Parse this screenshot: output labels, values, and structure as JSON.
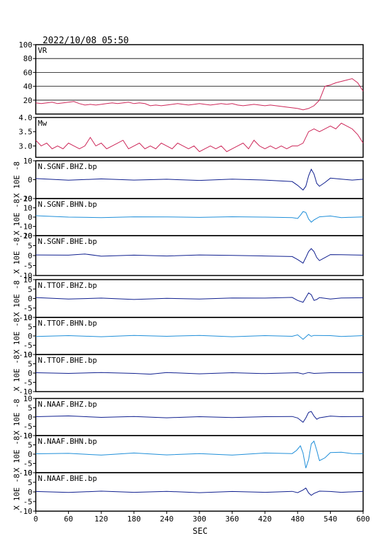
{
  "header": {
    "title": "2022/10/08 05:50"
  },
  "x_axis": {
    "label": "SEC",
    "ticks": [
      "0",
      "60",
      "120",
      "180",
      "240",
      "300",
      "360",
      "420",
      "480",
      "540",
      "600"
    ]
  },
  "colors": {
    "vr_mw": "#cc2255",
    "dark_trace": "#0a1a8c",
    "light_trace": "#1a8cd8",
    "frame": "#000000"
  },
  "chart_data": [
    {
      "type": "line",
      "label": "VR",
      "yticks": [
        "100",
        "80",
        "60",
        "40",
        "20"
      ],
      "ylim": [
        0,
        100
      ],
      "grid": true,
      "series": [
        {
          "name": "VR",
          "x": [
            0,
            10,
            20,
            30,
            40,
            50,
            60,
            70,
            80,
            90,
            100,
            110,
            120,
            130,
            140,
            150,
            160,
            170,
            180,
            190,
            200,
            210,
            220,
            230,
            240,
            250,
            260,
            270,
            280,
            290,
            300,
            310,
            320,
            330,
            340,
            350,
            360,
            370,
            380,
            390,
            400,
            410,
            420,
            430,
            440,
            450,
            460,
            470,
            480,
            490,
            500,
            510,
            520,
            530,
            540,
            550,
            560,
            570,
            580,
            590,
            600
          ],
          "values": [
            16,
            15,
            16,
            17,
            15,
            16,
            17,
            18,
            15,
            13,
            14,
            13,
            14,
            15,
            16,
            15,
            16,
            17,
            15,
            16,
            15,
            12,
            13,
            12,
            13,
            14,
            15,
            14,
            13,
            14,
            15,
            14,
            13,
            14,
            15,
            14,
            15,
            13,
            12,
            13,
            14,
            13,
            12,
            13,
            12,
            11,
            10,
            9,
            8,
            6,
            8,
            12,
            20,
            40,
            42,
            45,
            47,
            49,
            51,
            45,
            33
          ]
        }
      ]
    },
    {
      "type": "line",
      "label": "Mw",
      "yticks": [
        "4.0",
        "3.5",
        "3.0"
      ],
      "ylim": [
        2.6,
        4.0
      ],
      "grid": false,
      "series": [
        {
          "name": "Mw",
          "x": [
            0,
            10,
            20,
            30,
            40,
            50,
            60,
            70,
            80,
            90,
            100,
            110,
            120,
            130,
            140,
            150,
            160,
            170,
            180,
            190,
            200,
            210,
            220,
            230,
            240,
            250,
            260,
            270,
            280,
            290,
            300,
            310,
            320,
            330,
            340,
            350,
            360,
            370,
            380,
            390,
            400,
            410,
            420,
            430,
            440,
            450,
            460,
            470,
            480,
            490,
            500,
            510,
            520,
            530,
            540,
            550,
            560,
            570,
            580,
            590,
            600
          ],
          "values": [
            3.2,
            3.0,
            3.1,
            2.9,
            3.0,
            2.9,
            3.1,
            3.0,
            2.9,
            3.0,
            3.3,
            3.0,
            3.1,
            2.9,
            3.0,
            3.1,
            3.2,
            2.9,
            3.0,
            3.1,
            2.9,
            3.0,
            2.9,
            3.1,
            3.0,
            2.9,
            3.1,
            3.0,
            2.9,
            3.0,
            2.8,
            2.9,
            3.0,
            2.9,
            3.0,
            2.8,
            2.9,
            3.0,
            3.1,
            2.9,
            3.2,
            3.0,
            2.9,
            3.0,
            2.9,
            3.0,
            2.9,
            3.0,
            3.0,
            3.1,
            3.5,
            3.6,
            3.5,
            3.6,
            3.7,
            3.6,
            3.8,
            3.7,
            3.6,
            3.4,
            3.1
          ]
        }
      ]
    },
    {
      "type": "line",
      "label": "N.SGNF.BHZ.bp",
      "y_unit": "X 10E -8",
      "yticks": [
        "10",
        "0",
        "-10"
      ],
      "ylim": [
        -10,
        10
      ],
      "color_key": "dark_trace",
      "series": [
        {
          "name": "N.SGNF.BHZ.bp",
          "x": [
            0,
            60,
            120,
            180,
            240,
            300,
            360,
            420,
            470,
            480,
            490,
            495,
            500,
            505,
            510,
            515,
            520,
            530,
            540,
            560,
            580,
            600
          ],
          "values": [
            0.6,
            -0.3,
            0.4,
            -0.2,
            0.2,
            -0.4,
            0.3,
            -0.2,
            -1.0,
            -3.0,
            -5.5,
            -3.5,
            2.0,
            5.5,
            3.0,
            -2.0,
            -3.5,
            -1.5,
            0.8,
            0.3,
            -0.2,
            0.2
          ]
        }
      ]
    },
    {
      "type": "line",
      "label": "N.SGNF.BHN.bp",
      "y_unit": "X 10E -8",
      "yticks": [
        "20",
        "10",
        "0",
        "-10",
        "-20"
      ],
      "ylim": [
        -20,
        20
      ],
      "color_key": "light_trace",
      "series": [
        {
          "name": "N.SGNF.BHN.bp",
          "x": [
            0,
            60,
            120,
            180,
            240,
            300,
            360,
            420,
            470,
            480,
            485,
            490,
            495,
            500,
            505,
            510,
            520,
            540,
            560,
            600
          ],
          "values": [
            1.5,
            0.0,
            -0.5,
            0.3,
            0.2,
            -0.3,
            0.4,
            0.0,
            -0.5,
            -1.5,
            2.0,
            6.0,
            5.0,
            -2.0,
            -5.5,
            -3.0,
            0.3,
            1.2,
            -0.5,
            0.2
          ]
        }
      ]
    },
    {
      "type": "line",
      "label": "N.SGNF.BHE.bp",
      "y_unit": "X 10E -8",
      "yticks": [
        "10",
        "5",
        "0",
        "-5",
        "-10"
      ],
      "ylim": [
        -10,
        10
      ],
      "color_key": "dark_trace",
      "series": [
        {
          "name": "N.SGNF.BHE.bp",
          "x": [
            0,
            60,
            90,
            120,
            180,
            240,
            300,
            360,
            420,
            470,
            480,
            490,
            495,
            500,
            505,
            510,
            515,
            520,
            530,
            540,
            560,
            600
          ],
          "values": [
            0.3,
            0.2,
            0.8,
            -0.3,
            0.2,
            -0.2,
            0.3,
            0.1,
            -0.2,
            -0.5,
            -2.0,
            -3.8,
            -1.0,
            2.0,
            3.5,
            2.0,
            -1.0,
            -2.5,
            -1.0,
            0.5,
            0.4,
            0.2
          ]
        }
      ]
    },
    {
      "type": "line",
      "label": "N.TTOF.BHZ.bp",
      "y_unit": "X 10E -8",
      "yticks": [
        "10",
        "5",
        "0",
        "-5",
        "-10"
      ],
      "ylim": [
        -10,
        10
      ],
      "color_key": "dark_trace",
      "series": [
        {
          "name": "N.TTOF.BHZ.bp",
          "x": [
            0,
            60,
            120,
            180,
            240,
            300,
            360,
            420,
            470,
            480,
            490,
            495,
            500,
            505,
            510,
            515,
            520,
            540,
            560,
            600
          ],
          "values": [
            0.5,
            -0.3,
            0.2,
            -0.5,
            0.1,
            -0.3,
            0.3,
            0.2,
            0.6,
            -1.0,
            -2.0,
            0.5,
            3.0,
            2.0,
            -1.0,
            -0.5,
            0.5,
            -0.3,
            0.3,
            0.4
          ]
        }
      ]
    },
    {
      "type": "line",
      "label": "N.TTOF.BHN.bp",
      "y_unit": "X 10E -8",
      "yticks": [
        "10",
        "5",
        "0",
        "-5",
        "-10"
      ],
      "ylim": [
        -10,
        10
      ],
      "color_key": "light_trace",
      "series": [
        {
          "name": "N.TTOF.BHN.bp",
          "x": [
            0,
            60,
            120,
            180,
            240,
            300,
            360,
            420,
            470,
            480,
            490,
            495,
            500,
            505,
            510,
            540,
            560,
            600
          ],
          "values": [
            -0.3,
            0.2,
            -0.4,
            0.3,
            -0.2,
            0.3,
            -0.4,
            0.2,
            -0.2,
            0.6,
            -1.8,
            -0.5,
            0.8,
            -0.2,
            0.3,
            0.2,
            -0.3,
            0.2
          ]
        }
      ]
    },
    {
      "type": "line",
      "label": "N.TTOF.BHE.bp",
      "y_unit": "X 10E -8",
      "yticks": [
        "10",
        "5",
        "0",
        "-5",
        "-10"
      ],
      "ylim": [
        -10,
        10
      ],
      "color_key": "dark_trace",
      "series": [
        {
          "name": "N.TTOF.BHE.bp",
          "x": [
            0,
            60,
            120,
            180,
            210,
            240,
            300,
            360,
            420,
            480,
            490,
            500,
            510,
            540,
            600
          ],
          "values": [
            0.2,
            -0.2,
            0.3,
            -0.2,
            -0.6,
            0.3,
            -0.4,
            0.2,
            -0.3,
            0.2,
            -0.5,
            0.3,
            -0.2,
            0.2,
            0.2
          ]
        }
      ]
    },
    {
      "type": "line",
      "label": "N.NAAF.BHZ.bp",
      "y_unit": "X 10E -8",
      "yticks": [
        "10",
        "5",
        "0",
        "-5",
        "-10"
      ],
      "ylim": [
        -10,
        10
      ],
      "color_key": "dark_trace",
      "series": [
        {
          "name": "N.NAAF.BHZ.bp",
          "x": [
            0,
            60,
            120,
            180,
            240,
            300,
            360,
            420,
            470,
            480,
            490,
            495,
            500,
            505,
            510,
            515,
            520,
            540,
            560,
            600
          ],
          "values": [
            0.2,
            0.6,
            -0.2,
            0.3,
            -0.4,
            0.2,
            -0.3,
            0.2,
            0.3,
            -0.5,
            -2.8,
            -0.5,
            2.5,
            3.0,
            0.5,
            -1.2,
            -0.4,
            0.5,
            0.2,
            0.3
          ]
        }
      ]
    },
    {
      "type": "line",
      "label": "N.NAAF.BHN.bp",
      "y_unit": "X 10E -8",
      "yticks": [
        "10",
        "5",
        "0",
        "-5",
        "-10"
      ],
      "ylim": [
        -10,
        10
      ],
      "color_key": "light_trace",
      "series": [
        {
          "name": "N.NAAF.BHN.bp",
          "x": [
            0,
            60,
            120,
            180,
            240,
            300,
            360,
            420,
            470,
            478,
            485,
            490,
            495,
            500,
            505,
            510,
            515,
            520,
            530,
            540,
            560,
            580,
            600
          ],
          "values": [
            0.2,
            0.4,
            -0.5,
            0.6,
            -0.4,
            0.3,
            -0.5,
            0.6,
            0.3,
            2.0,
            4.5,
            0.5,
            -7.5,
            -3.0,
            5.5,
            7.0,
            2.0,
            -3.5,
            -2.0,
            0.8,
            1.0,
            0.3,
            0.2
          ]
        }
      ]
    },
    {
      "type": "line",
      "label": "N.NAAF.BHE.bp",
      "y_unit": "X 10E -8",
      "yticks": [
        "10",
        "5",
        "0",
        "-5",
        "-10"
      ],
      "ylim": [
        -10,
        10
      ],
      "color_key": "dark_trace",
      "series": [
        {
          "name": "N.NAAF.BHE.bp",
          "x": [
            0,
            60,
            120,
            180,
            240,
            300,
            360,
            420,
            470,
            480,
            490,
            495,
            500,
            505,
            510,
            520,
            540,
            560,
            600
          ],
          "values": [
            0.2,
            -0.3,
            0.4,
            -0.2,
            0.3,
            -0.4,
            0.2,
            -0.2,
            0.3,
            -0.4,
            1.0,
            2.0,
            -0.5,
            -1.8,
            -0.8,
            0.4,
            0.2,
            -0.2,
            0.3
          ]
        }
      ]
    }
  ]
}
